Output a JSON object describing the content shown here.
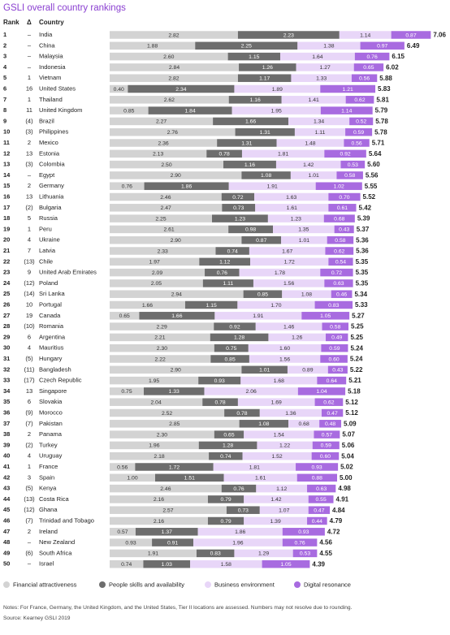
{
  "chart_data": {
    "type": "bar",
    "orientation": "horizontal",
    "stacked": true,
    "title": "GSLI overall country rankings",
    "rank_header": "Rank",
    "change_header": "Δ",
    "category_header": "Country",
    "ranks": [
      1,
      2,
      3,
      4,
      5,
      6,
      7,
      8,
      9,
      10,
      11,
      12,
      13,
      14,
      15,
      16,
      17,
      18,
      19,
      20,
      21,
      22,
      23,
      24,
      25,
      26,
      27,
      28,
      29,
      30,
      31,
      32,
      33,
      34,
      35,
      36,
      37,
      38,
      39,
      40,
      41,
      42,
      43,
      44,
      45,
      46,
      47,
      48,
      49,
      50
    ],
    "changes": [
      "–",
      "–",
      "–",
      "–",
      "1",
      "16",
      "1",
      "11",
      "(4)",
      "(3)",
      "2",
      "13",
      "(3)",
      "–",
      "2",
      "13",
      "(2)",
      "5",
      "1",
      "4",
      "7",
      "(13)",
      "9",
      "(12)",
      "(14)",
      "10",
      "19",
      "(10)",
      "6",
      "4",
      "(5)",
      "(11)",
      "(17)",
      "13",
      "6",
      "(9)",
      "(7)",
      "2",
      "(2)",
      "4",
      "1",
      "3",
      "(5)",
      "(13)",
      "(12)",
      "(7)",
      "2",
      "–",
      "(6)",
      "–"
    ],
    "categories": [
      "India",
      "China",
      "Malaysia",
      "Indonesia",
      "Vietnam",
      "United States",
      "Thailand",
      "United Kingdom",
      "Brazil",
      "Philippines",
      "Mexico",
      "Estonia",
      "Colombia",
      "Egypt",
      "Germany",
      "Lithuania",
      "Bulgaria",
      "Russia",
      "Peru",
      "Ukraine",
      "Latvia",
      "Chile",
      "United Arab Emirates",
      "Poland",
      "Sri Lanka",
      "Portugal",
      "Canada",
      "Romania",
      "Argentina",
      "Mauritius",
      "Hungary",
      "Bangladesh",
      "Czech Republic",
      "Singapore",
      "Slovakia",
      "Morocco",
      "Pakistan",
      "Panama",
      "Turkey",
      "Uruguay",
      "France",
      "Spain",
      "Kenya",
      "Costa Rica",
      "Ghana",
      "Trinidad and Tobago",
      "Ireland",
      "New Zealand",
      "South Africa",
      "Israel"
    ],
    "series": [
      {
        "name": "Financial attractiveness",
        "color": "#d3d3d3",
        "label_color": "#333333",
        "values": [
          2.82,
          1.88,
          2.6,
          2.84,
          2.82,
          0.4,
          2.62,
          0.85,
          2.27,
          2.76,
          2.36,
          2.13,
          2.5,
          2.9,
          0.76,
          2.46,
          2.47,
          2.25,
          2.61,
          2.9,
          2.33,
          1.97,
          2.09,
          2.05,
          2.94,
          1.66,
          0.65,
          2.29,
          2.21,
          2.3,
          2.22,
          2.9,
          1.95,
          0.75,
          2.04,
          2.52,
          2.85,
          2.3,
          1.96,
          2.18,
          0.56,
          1.0,
          2.46,
          2.16,
          2.57,
          2.16,
          0.57,
          0.93,
          1.91,
          0.74
        ],
        "value_labels": [
          "2.82",
          "1.88",
          "2.60",
          "2.84",
          "2.82",
          "0.40",
          "2.62",
          "0.85",
          "2.27",
          "2.76",
          "2.36",
          "2.13",
          "2.50",
          "2.90",
          "0.76",
          "2.46",
          "2.47",
          "2.25",
          "2.61",
          "2.90",
          "2.33",
          "1.97",
          "2.09",
          "2.05",
          "2.94",
          "1.66",
          "0.65",
          "2.29",
          "2.21",
          "2.30",
          "2.22",
          "2.90",
          "1.95",
          "0.75",
          "2.04",
          "2.52",
          "2.85",
          "2.30",
          "1.96",
          "2.18",
          "0.56",
          "1.00",
          "2.46",
          "2.16",
          "2.57",
          "2.16",
          "0.57",
          "0.93",
          "1.91",
          "0.74"
        ]
      },
      {
        "name": "People skills and availability",
        "color": "#6d6d6d",
        "label_color": "#ffffff",
        "values": [
          2.23,
          2.25,
          1.15,
          1.26,
          1.17,
          2.34,
          1.16,
          1.84,
          1.66,
          1.31,
          1.31,
          0.78,
          1.16,
          1.08,
          1.86,
          0.72,
          0.73,
          1.23,
          0.98,
          0.87,
          0.74,
          1.12,
          0.76,
          1.11,
          0.85,
          1.15,
          1.66,
          0.92,
          1.28,
          0.75,
          0.85,
          1.01,
          0.93,
          1.33,
          0.78,
          0.78,
          1.08,
          0.65,
          1.28,
          0.74,
          1.72,
          1.51,
          0.76,
          0.79,
          0.73,
          0.79,
          1.37,
          0.91,
          0.83,
          1.03
        ],
        "value_labels": [
          "2.23",
          "2.25",
          "1.15",
          "1.26",
          "1.17",
          "2.34",
          "1.16",
          "1.84",
          "1.66",
          "1.31",
          "1.31",
          "0.78",
          "1.16",
          "1.08",
          "1.86",
          "0.72",
          "0.73",
          "1.23",
          "0.98",
          "0.87",
          "0.74",
          "1.12",
          "0.76",
          "1.11",
          "0.85",
          "1.15",
          "1.66",
          "0.92",
          "1.28",
          "0.75",
          "0.85",
          "1.01",
          "0.93",
          "1.33",
          "0.78",
          "0.78",
          "1.08",
          "0.65",
          "1.28",
          "0.74",
          "1.72",
          "1.51",
          "0.76",
          "0.79",
          "0.73",
          "0.79",
          "1.37",
          "0.91",
          "0.83",
          "1.03"
        ]
      },
      {
        "name": "Business environment",
        "color": "#e8d6f8",
        "label_color": "#333333",
        "values": [
          1.14,
          1.38,
          1.64,
          1.27,
          1.33,
          1.89,
          1.41,
          1.95,
          1.34,
          1.11,
          1.48,
          1.81,
          1.42,
          1.01,
          1.91,
          1.63,
          1.61,
          1.23,
          1.35,
          1.01,
          1.67,
          1.72,
          1.78,
          1.56,
          1.08,
          1.7,
          1.91,
          1.46,
          1.26,
          1.6,
          1.56,
          0.89,
          1.68,
          2.06,
          1.69,
          1.36,
          0.68,
          1.54,
          1.22,
          1.52,
          1.81,
          1.61,
          1.12,
          1.42,
          1.07,
          1.39,
          1.86,
          1.96,
          1.29,
          1.58
        ],
        "value_labels": [
          "1.14",
          "1.38",
          "1.64",
          "1.27",
          "1.33",
          "1.89",
          "1.41",
          "1.95",
          "1.34",
          "1.11",
          "1.48",
          "1.81",
          "1.42",
          "1.01",
          "1.91",
          "1.63",
          "1.61",
          "1.23",
          "1.35",
          "1.01",
          "1.67",
          "1.72",
          "1.78",
          "1.56",
          "1.08",
          "1.70",
          "1.91",
          "1.46",
          "1.26",
          "1.60",
          "1.56",
          "0.89",
          "1.68",
          "2.06",
          "1.69",
          "1.36",
          "0.68",
          "1.54",
          "1.22",
          "1.52",
          "1.81",
          "1.61",
          "1.12",
          "1.42",
          "1.07",
          "1.39",
          "1.86",
          "1.96",
          "1.29",
          "1.58"
        ]
      },
      {
        "name": "Digital resonance",
        "color": "#a86be0",
        "label_color": "#ffffff",
        "values": [
          0.87,
          0.97,
          0.76,
          0.65,
          0.56,
          1.21,
          0.62,
          1.14,
          0.52,
          0.59,
          0.56,
          0.92,
          0.53,
          0.58,
          1.02,
          0.7,
          0.61,
          0.68,
          0.43,
          0.58,
          0.62,
          0.54,
          0.72,
          0.63,
          0.46,
          0.83,
          1.05,
          0.58,
          0.49,
          0.59,
          0.6,
          0.43,
          0.64,
          1.04,
          0.62,
          0.47,
          0.48,
          0.57,
          0.59,
          0.6,
          0.93,
          0.88,
          0.63,
          0.55,
          0.47,
          0.44,
          0.93,
          0.76,
          0.53,
          1.05
        ],
        "value_labels": [
          "0.87",
          "0.97",
          "0.76",
          "0.65",
          "0.56",
          "1.21",
          "0.62",
          "1.14",
          "0.52",
          "0.59",
          "0.56",
          "0.92",
          "0.53",
          "0.58",
          "1.02",
          "0.70",
          "0.61",
          "0.68",
          "0.43",
          "0.58",
          "0.62",
          "0.54",
          "0.72",
          "0.63",
          "0.46",
          "0.83",
          "1.05",
          "0.58",
          "0.49",
          "0.59",
          "0.60",
          "0.43",
          "0.64",
          "1.04",
          "0.62",
          "0.47",
          "0.48",
          "0.57",
          "0.59",
          "0.60",
          "0.93",
          "0.88",
          "0.63",
          "0.55",
          "0.47",
          "0.44",
          "0.93",
          "0.76",
          "0.53",
          "1.05"
        ]
      }
    ],
    "totals": [
      7.06,
      6.49,
      6.15,
      6.02,
      5.88,
      5.83,
      5.81,
      5.79,
      5.78,
      5.78,
      5.71,
      5.64,
      5.6,
      5.56,
      5.55,
      5.52,
      5.42,
      5.39,
      5.37,
      5.36,
      5.36,
      5.35,
      5.35,
      5.35,
      5.34,
      5.33,
      5.27,
      5.25,
      5.25,
      5.24,
      5.24,
      5.22,
      5.21,
      5.18,
      5.12,
      5.12,
      5.09,
      5.07,
      5.06,
      5.04,
      5.02,
      5.0,
      4.98,
      4.91,
      4.84,
      4.79,
      4.72,
      4.56,
      4.55,
      4.39
    ],
    "total_labels": [
      "7.06",
      "6.49",
      "6.15",
      "6.02",
      "5.88",
      "5.83",
      "5.81",
      "5.79",
      "5.78",
      "5.78",
      "5.71",
      "5.64",
      "5.60",
      "5.56",
      "5.55",
      "5.52",
      "5.42",
      "5.39",
      "5.37",
      "5.36",
      "5.36",
      "5.35",
      "5.35",
      "5.35",
      "5.34",
      "5.33",
      "5.27",
      "5.25",
      "5.25",
      "5.24",
      "5.24",
      "5.22",
      "5.21",
      "5.18",
      "5.12",
      "5.12",
      "5.09",
      "5.07",
      "5.06",
      "5.04",
      "5.02",
      "5.00",
      "4.98",
      "4.91",
      "4.84",
      "4.79",
      "4.72",
      "4.56",
      "4.55",
      "4.39"
    ],
    "notes": "Notes: For France, Germany, the United Kingdom, and the United States, Tier II locations are assessed. Numbers may not resolve due to rounding.",
    "source": "Source: Kearney GSLI 2019"
  }
}
